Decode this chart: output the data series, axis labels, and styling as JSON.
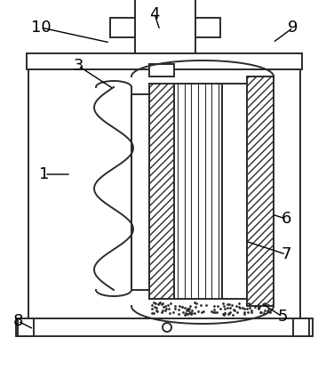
{
  "background_color": "#ffffff",
  "line_color": "#2b2b2b",
  "label_color": "#000000",
  "figsize": [
    3.76,
    4.16
  ],
  "dpi": 100,
  "label_fontsize": 13,
  "lw": 1.4
}
